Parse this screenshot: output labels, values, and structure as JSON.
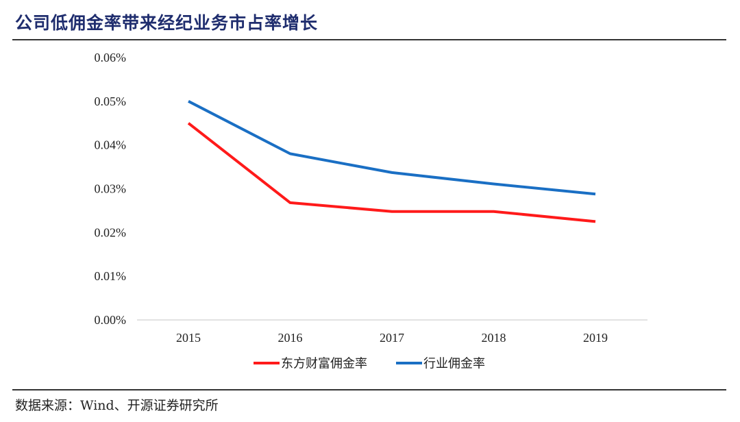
{
  "header": {
    "title": "公司低佣金率带来经纪业务市占率增长"
  },
  "chart_data": {
    "type": "line",
    "title": "",
    "xlabel": "",
    "ylabel": "",
    "categories": [
      "2015",
      "2016",
      "2017",
      "2018",
      "2019"
    ],
    "ylim": [
      0,
      0.06
    ],
    "y_ticks": [
      0,
      0.01,
      0.02,
      0.03,
      0.04,
      0.05,
      0.06
    ],
    "y_tick_labels": [
      "0.00%",
      "0.01%",
      "0.02%",
      "0.03%",
      "0.04%",
      "0.05%",
      "0.06%"
    ],
    "y_unit": "%",
    "grid": false,
    "legend_position": "bottom",
    "series": [
      {
        "name": "东方财富佣金率",
        "color": "#ff1a1a",
        "values": [
          0.045,
          0.0268,
          0.0248,
          0.0248,
          0.0225
        ]
      },
      {
        "name": "行业佣金率",
        "color": "#1a6fc4",
        "values": [
          0.05,
          0.038,
          0.0337,
          0.0311,
          0.0288
        ]
      }
    ]
  },
  "footer": {
    "source": "数据来源：Wind、开源证券研究所"
  }
}
